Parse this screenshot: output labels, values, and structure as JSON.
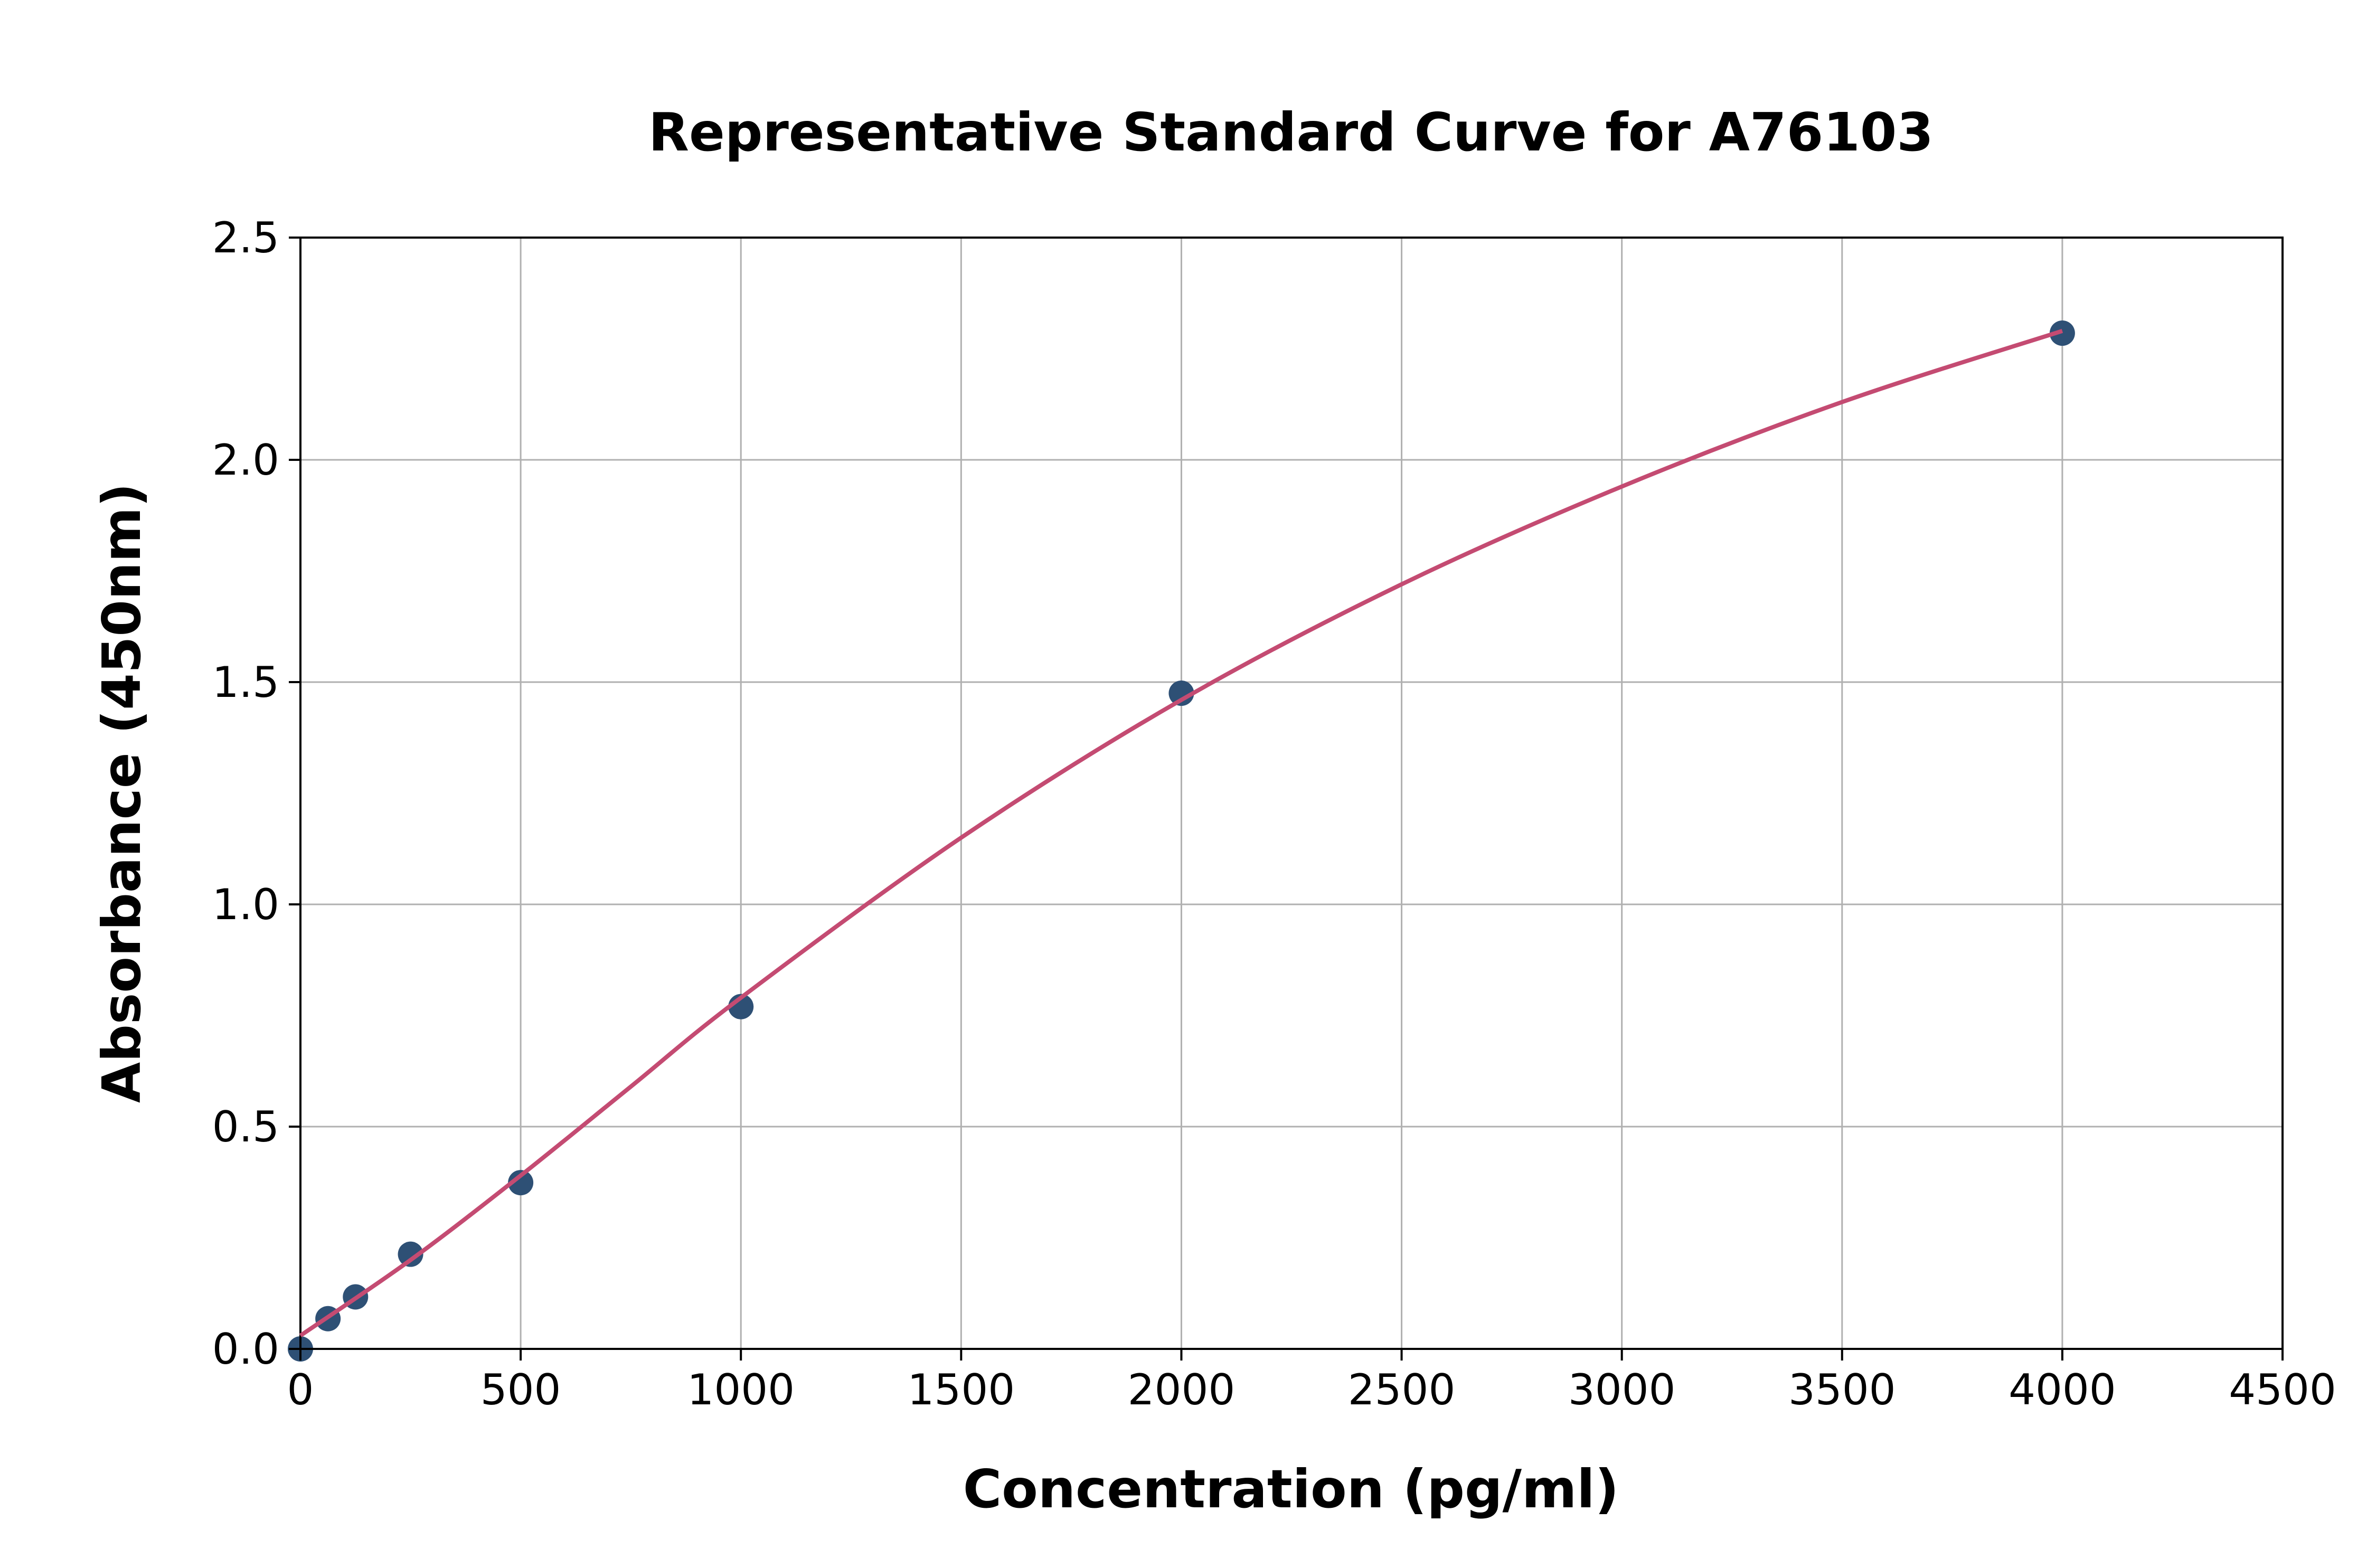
{
  "chart_data": {
    "type": "scatter",
    "title": "Representative Standard Curve for A76103",
    "xlabel": "Concentration (pg/ml)",
    "ylabel": "Absorbance (450nm)",
    "xlim": [
      0,
      4500
    ],
    "ylim": [
      0,
      2.5
    ],
    "xticks": [
      "0",
      "500",
      "1000",
      "1500",
      "2000",
      "2500",
      "3000",
      "3500",
      "4000",
      "4500"
    ],
    "yticks": [
      "0.0",
      "0.5",
      "1.0",
      "1.5",
      "2.0",
      "2.5"
    ],
    "grid": true,
    "points": {
      "x": [
        0,
        62.5,
        125,
        250,
        500,
        1000,
        2000,
        4000
      ],
      "y": [
        0.0,
        0.068,
        0.117,
        0.213,
        0.374,
        0.77,
        1.475,
        2.285
      ]
    },
    "fit_curve": {
      "x": [
        0,
        250,
        500,
        750,
        1000,
        1500,
        2000,
        2500,
        3000,
        3500,
        4000
      ],
      "y": [
        0.03,
        0.2,
        0.39,
        0.59,
        0.79,
        1.15,
        1.46,
        1.72,
        1.94,
        2.13,
        2.29
      ]
    },
    "colors": {
      "points": "#2e5075",
      "curve": "#c44b72",
      "grid": "#b0b0b0"
    }
  }
}
